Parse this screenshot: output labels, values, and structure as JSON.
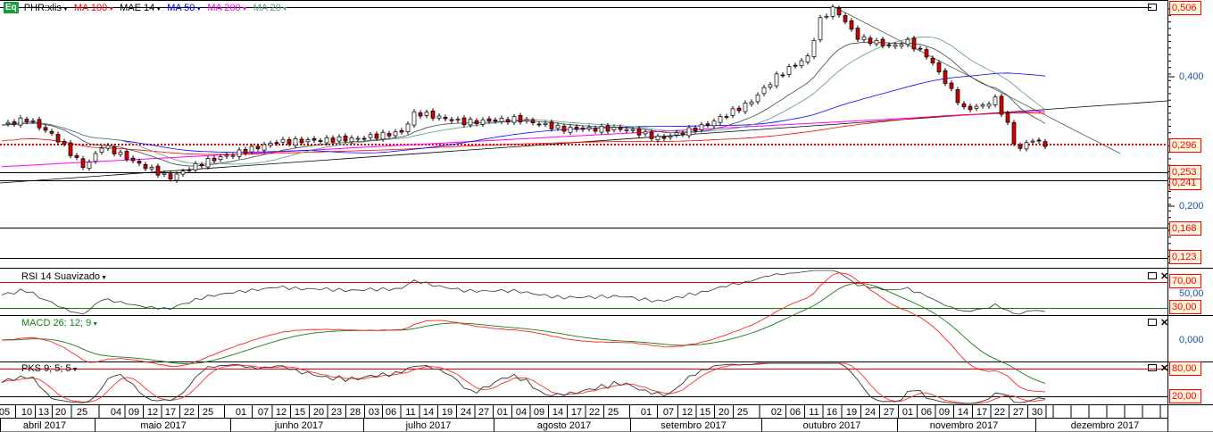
{
  "legend": {
    "symbol": "PHR:xlis",
    "badge": "Eq",
    "items": [
      {
        "label": "MA 100",
        "color": "#ff0000"
      },
      {
        "label": "MAE 14",
        "color": "#000000"
      },
      {
        "label": "MA 50",
        "color": "#0000ff"
      },
      {
        "label": "MA 200",
        "color": "#ff00ff"
      },
      {
        "label": "MA 20",
        "color": "#5a9a80"
      }
    ]
  },
  "price_axis": {
    "ticks": [
      "0,400",
      "0,200"
    ],
    "tags": [
      "0,506",
      "0,296",
      "0,253",
      "0,241",
      "0,168",
      "0,123"
    ]
  },
  "rsi": {
    "label": "RSI 14 Suavizado",
    "ticks": [
      "70,00",
      "50,00",
      "30,00"
    ]
  },
  "macd": {
    "label": "MACD 26; 12; 9",
    "ticks": [
      "0,000"
    ]
  },
  "pks": {
    "label": "PKS 9; 5; 5",
    "ticks": [
      "80,00",
      "20,00"
    ]
  },
  "dates": [
    "05",
    "10",
    "13",
    "20",
    "25",
    "04",
    "09",
    "12",
    "17",
    "22",
    "25",
    "01",
    "07",
    "12",
    "15",
    "20",
    "23",
    "28",
    "03",
    "06",
    "11",
    "14",
    "19",
    "24",
    "27",
    "01",
    "04",
    "09",
    "14",
    "17",
    "22",
    "25",
    "01",
    "07",
    "12",
    "15",
    "20",
    "25",
    "02",
    "06",
    "11",
    "16",
    "19",
    "24",
    "27",
    "01",
    "06",
    "09",
    "14",
    "17",
    "22",
    "27",
    "30"
  ],
  "months": [
    "abril 2017",
    "maio 2017",
    "junho 2017",
    "julho 2017",
    "agosto 2017",
    "setembro 2017",
    "outubro 2017",
    "novembro 2017",
    "dezembro 2017"
  ],
  "price_keypoints": [
    [
      0,
      0.325
    ],
    [
      30,
      0.335
    ],
    [
      60,
      0.31
    ],
    [
      95,
      0.26
    ],
    [
      115,
      0.295
    ],
    [
      150,
      0.27
    ],
    [
      190,
      0.245
    ],
    [
      230,
      0.27
    ],
    [
      270,
      0.285
    ],
    [
      310,
      0.3
    ],
    [
      400,
      0.305
    ],
    [
      450,
      0.315
    ],
    [
      465,
      0.345
    ],
    [
      520,
      0.33
    ],
    [
      580,
      0.335
    ],
    [
      630,
      0.32
    ],
    [
      700,
      0.32
    ],
    [
      740,
      0.305
    ],
    [
      790,
      0.325
    ],
    [
      840,
      0.36
    ],
    [
      870,
      0.4
    ],
    [
      905,
      0.43
    ],
    [
      920,
      0.49
    ],
    [
      935,
      0.505
    ],
    [
      960,
      0.46
    ],
    [
      1000,
      0.445
    ],
    [
      1015,
      0.455
    ],
    [
      1040,
      0.43
    ],
    [
      1060,
      0.39
    ],
    [
      1080,
      0.35
    ],
    [
      1100,
      0.355
    ],
    [
      1115,
      0.365
    ],
    [
      1128,
      0.33
    ],
    [
      1140,
      0.285
    ],
    [
      1155,
      0.305
    ],
    [
      1165,
      0.297
    ]
  ]
}
